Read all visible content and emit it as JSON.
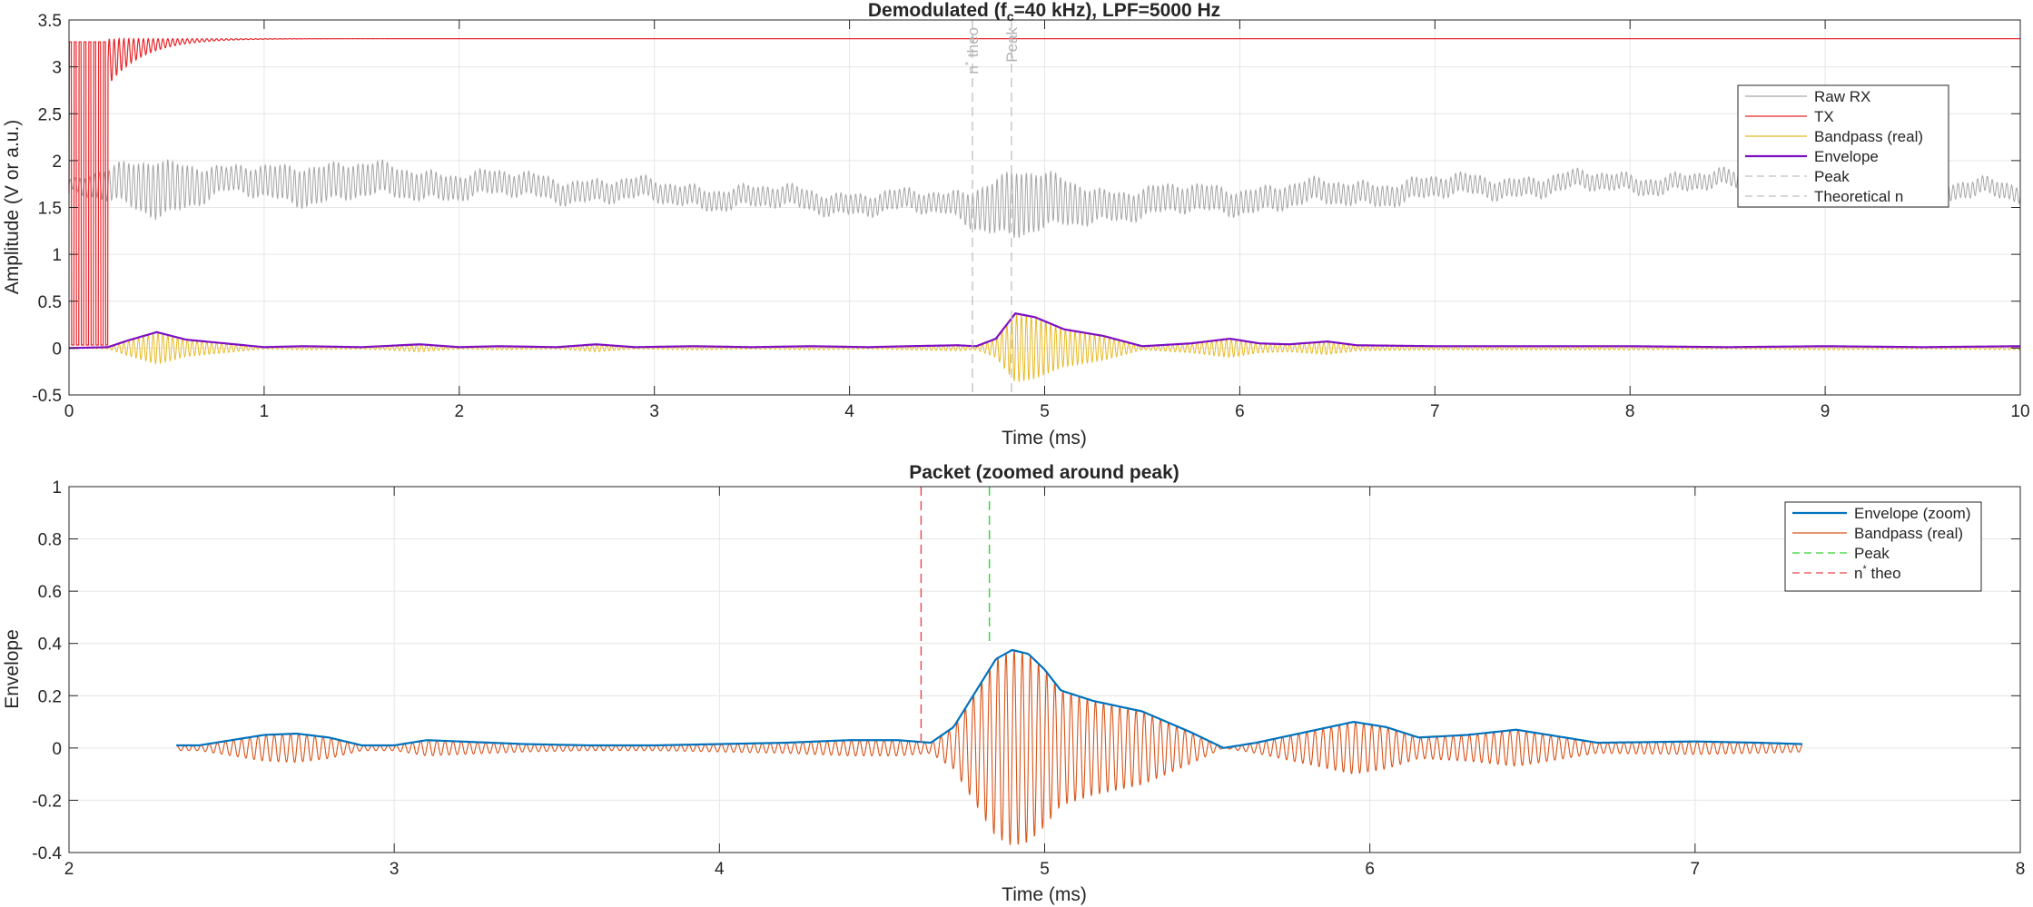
{
  "chart_data": [
    {
      "type": "line",
      "title": "Demodulated  (f",
      "title_sub": "c",
      "title_rest": "=40  kHz),  LPF=5000  Hz",
      "xlabel": "Time (ms)",
      "ylabel": "Amplitude (V or a.u.)",
      "xlim": [
        0,
        10
      ],
      "ylim": [
        -0.5,
        3.5
      ],
      "xticks": [
        0,
        1,
        2,
        3,
        4,
        5,
        6,
        7,
        8,
        9,
        10
      ],
      "xtick_labels": [
        "0",
        "1",
        "2",
        "3",
        "4",
        "5",
        "6",
        "7",
        "8",
        "9",
        "10"
      ],
      "yticks": [
        -0.5,
        0,
        0.5,
        1,
        1.5,
        2,
        2.5,
        3,
        3.5
      ],
      "ytick_labels": [
        "-0.5",
        "0",
        "0.5",
        "1",
        "1.5",
        "2",
        "2.5",
        "3",
        "3.5"
      ],
      "grid": true,
      "legend_position": "top-right",
      "series": [
        {
          "name": "Raw RX",
          "color": "#a6a6a6",
          "baseline": 1.65,
          "envelope_points": [
            [
              0,
              0.05
            ],
            [
              0.45,
              0.3
            ],
            [
              0.8,
              0.12
            ],
            [
              1.2,
              0.2
            ],
            [
              2,
              0.12
            ],
            [
              3,
              0.1
            ],
            [
              4.5,
              0.1
            ],
            [
              4.85,
              0.35
            ],
            [
              5.3,
              0.15
            ],
            [
              6,
              0.12
            ],
            [
              7,
              0.1
            ],
            [
              8,
              0.08
            ],
            [
              9,
              0.08
            ],
            [
              10,
              0.08
            ]
          ]
        },
        {
          "name": "TX",
          "color": "#e8262b",
          "level": 3.3,
          "burst_end_ms": 0.2,
          "settle_ms": 0.6
        },
        {
          "name": "Bandpass (real)",
          "color": "#e8b923"
        },
        {
          "name": "Envelope",
          "color": "#7e0ec4",
          "points": [
            [
              0,
              0
            ],
            [
              0.2,
              0.01
            ],
            [
              0.3,
              0.08
            ],
            [
              0.45,
              0.17
            ],
            [
              0.6,
              0.09
            ],
            [
              0.8,
              0.05
            ],
            [
              1.0,
              0.01
            ],
            [
              1.2,
              0.02
            ],
            [
              1.5,
              0.01
            ],
            [
              1.8,
              0.04
            ],
            [
              2.0,
              0.01
            ],
            [
              2.2,
              0.02
            ],
            [
              2.5,
              0.01
            ],
            [
              2.7,
              0.04
            ],
            [
              2.9,
              0.01
            ],
            [
              3.2,
              0.02
            ],
            [
              3.5,
              0.01
            ],
            [
              3.8,
              0.02
            ],
            [
              4.1,
              0.01
            ],
            [
              4.3,
              0.02
            ],
            [
              4.55,
              0.03
            ],
            [
              4.65,
              0.02
            ],
            [
              4.75,
              0.1
            ],
            [
              4.85,
              0.37
            ],
            [
              4.95,
              0.33
            ],
            [
              5.1,
              0.2
            ],
            [
              5.3,
              0.13
            ],
            [
              5.5,
              0.02
            ],
            [
              5.75,
              0.05
            ],
            [
              5.95,
              0.1
            ],
            [
              6.1,
              0.05
            ],
            [
              6.25,
              0.04
            ],
            [
              6.45,
              0.07
            ],
            [
              6.6,
              0.03
            ],
            [
              7.0,
              0.02
            ],
            [
              7.5,
              0.02
            ],
            [
              8.0,
              0.02
            ],
            [
              8.5,
              0.01
            ],
            [
              9.0,
              0.02
            ],
            [
              9.5,
              0.01
            ],
            [
              10,
              0.02
            ]
          ]
        },
        {
          "name": "Peak",
          "color": "#bfbfbf",
          "x": 4.83,
          "label": "Peak"
        },
        {
          "name": "Theoretical n",
          "color": "#bfbfbf",
          "x": 4.63,
          "label": "n",
          "label_sup": "*",
          "label_rest": " theo"
        }
      ]
    },
    {
      "type": "line",
      "title": "Packet (zoomed around peak)",
      "xlabel": "Time (ms)",
      "ylabel": "Envelope",
      "xlim": [
        2,
        8
      ],
      "ylim": [
        -0.4,
        1
      ],
      "xticks": [
        2,
        3,
        4,
        5,
        6,
        7,
        8
      ],
      "xtick_labels": [
        "2",
        "3",
        "4",
        "5",
        "6",
        "7",
        "8"
      ],
      "yticks": [
        -0.4,
        -0.2,
        0,
        0.2,
        0.4,
        0.6,
        0.8,
        1
      ],
      "ytick_labels": [
        "-0.4",
        "-0.2",
        "0",
        "0.2",
        "0.4",
        "0.6",
        "0.8",
        "1"
      ],
      "grid": true,
      "legend_position": "top-right",
      "x_range": [
        2.33,
        7.33
      ],
      "series": [
        {
          "name": "Envelope (zoom)",
          "color": "#0072bd",
          "points": [
            [
              2.33,
              0.01
            ],
            [
              2.4,
              0.01
            ],
            [
              2.5,
              0.03
            ],
            [
              2.6,
              0.05
            ],
            [
              2.7,
              0.055
            ],
            [
              2.8,
              0.04
            ],
            [
              2.9,
              0.01
            ],
            [
              3.0,
              0.01
            ],
            [
              3.1,
              0.03
            ],
            [
              3.2,
              0.025
            ],
            [
              3.4,
              0.015
            ],
            [
              3.6,
              0.01
            ],
            [
              3.8,
              0.01
            ],
            [
              4.0,
              0.015
            ],
            [
              4.2,
              0.02
            ],
            [
              4.4,
              0.03
            ],
            [
              4.55,
              0.03
            ],
            [
              4.65,
              0.02
            ],
            [
              4.72,
              0.08
            ],
            [
              4.78,
              0.2
            ],
            [
              4.85,
              0.34
            ],
            [
              4.9,
              0.375
            ],
            [
              4.95,
              0.36
            ],
            [
              5.0,
              0.3
            ],
            [
              5.05,
              0.22
            ],
            [
              5.15,
              0.18
            ],
            [
              5.3,
              0.14
            ],
            [
              5.45,
              0.06
            ],
            [
              5.55,
              0.0
            ],
            [
              5.65,
              0.02
            ],
            [
              5.8,
              0.06
            ],
            [
              5.95,
              0.1
            ],
            [
              6.05,
              0.08
            ],
            [
              6.15,
              0.04
            ],
            [
              6.3,
              0.05
            ],
            [
              6.45,
              0.07
            ],
            [
              6.55,
              0.05
            ],
            [
              6.7,
              0.02
            ],
            [
              7.0,
              0.025
            ],
            [
              7.2,
              0.02
            ],
            [
              7.33,
              0.015
            ]
          ]
        },
        {
          "name": "Bandpass (real)",
          "color": "#d95319"
        },
        {
          "name": "Peak",
          "color": "#33d433",
          "x": 4.83
        },
        {
          "name": "n* theo",
          "color": "#e8464b",
          "x": 4.62,
          "label": "n",
          "label_sup": "*",
          "label_rest": " theo"
        }
      ]
    }
  ]
}
